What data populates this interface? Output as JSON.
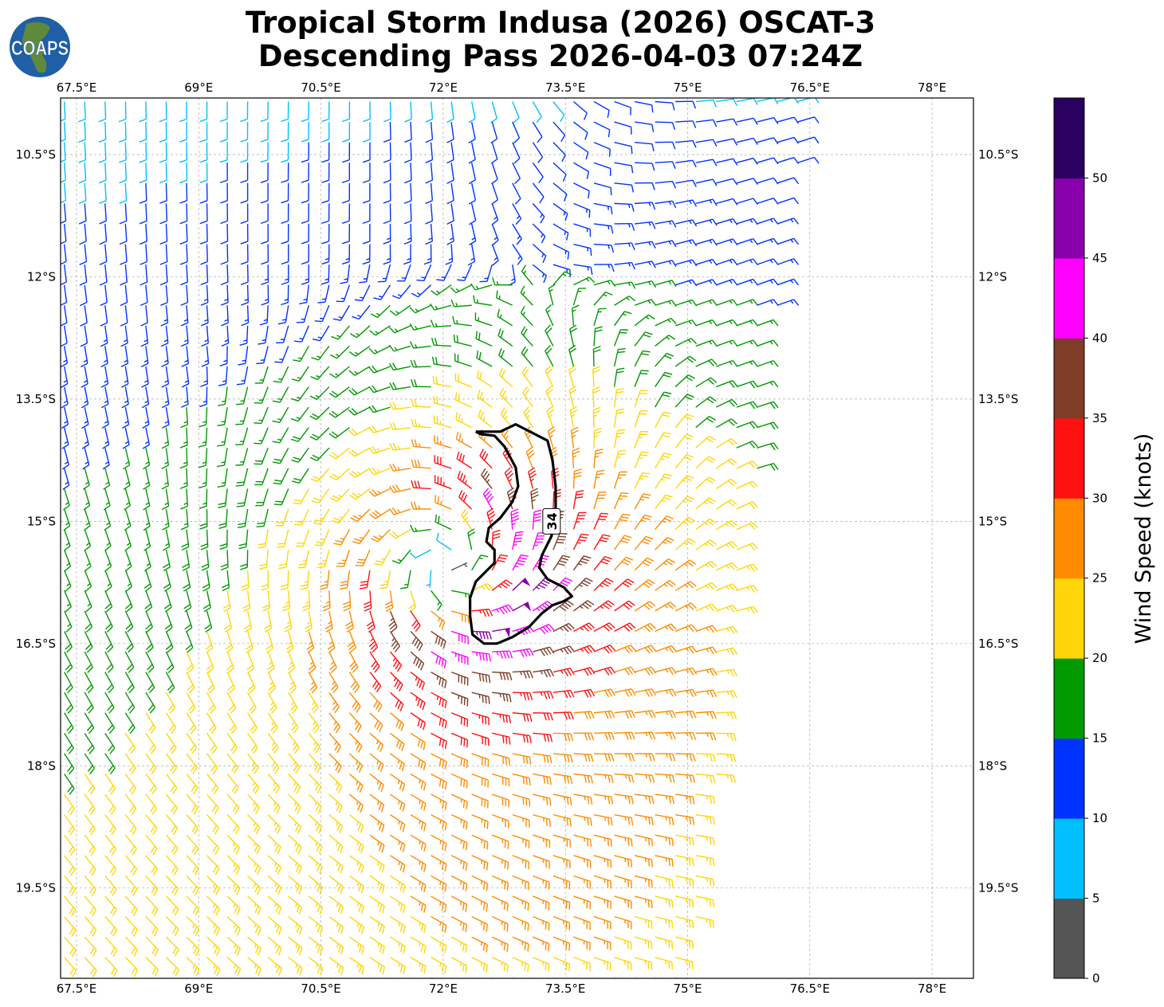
{
  "title_line1": "Tropical Storm Indusa (2026) OSCAT-3",
  "title_line2": "Descending Pass 2026-04-03 07:24Z",
  "logo_text": "COAPS",
  "chart_data": {
    "type": "wind-barb map",
    "title": "Tropical Storm Indusa (2026) OSCAT-3 Descending Pass 2026-04-03 07:24Z",
    "lon_range": [
      67.3,
      78.5
    ],
    "lat_range": [
      -20.6,
      -9.8
    ],
    "lon_ticks": [
      67.5,
      69,
      70.5,
      72,
      73.5,
      75,
      76.5,
      78
    ],
    "lon_tick_labels": [
      "67.5°E",
      "69°E",
      "70.5°E",
      "72°E",
      "73.5°E",
      "75°E",
      "76.5°E",
      "78°E"
    ],
    "lat_ticks": [
      -10.5,
      -12,
      -13.5,
      -15,
      -16.5,
      -18,
      -19.5
    ],
    "lat_tick_labels": [
      "10.5°S",
      "12°S",
      "13.5°S",
      "15°S",
      "16.5°S",
      "18°S",
      "19.5°S"
    ],
    "grid": true,
    "storm_center": {
      "lon": 72.05,
      "lat": -15.55
    },
    "barb_grid_spacing_deg": 0.25,
    "swath_east_edge": [
      {
        "lat": -9.83,
        "lon": 76.47
      },
      {
        "lat": -20.55,
        "lon": 75.02
      }
    ],
    "wind_model": {
      "max_wind_kt": 30,
      "rmw_deg": 0.9,
      "asymmetry": 0.35,
      "bg_north_kt": 6,
      "bg_rate_kt_per_deg": 1.2
    },
    "contour": {
      "level": 34,
      "label": "34",
      "label_position": {
        "lon": 73.33,
        "lat": -15.0
      },
      "points": [
        [
          72.4,
          -13.9
        ],
        [
          72.7,
          -13.9
        ],
        [
          72.89,
          -13.81
        ],
        [
          73.28,
          -14.01
        ],
        [
          73.34,
          -14.24
        ],
        [
          73.38,
          -14.57
        ],
        [
          73.38,
          -14.83
        ],
        [
          73.33,
          -15.18
        ],
        [
          73.21,
          -15.42
        ],
        [
          73.18,
          -15.57
        ],
        [
          73.28,
          -15.71
        ],
        [
          73.48,
          -15.81
        ],
        [
          73.58,
          -15.92
        ],
        [
          73.48,
          -15.98
        ],
        [
          73.34,
          -16.03
        ],
        [
          73.21,
          -16.13
        ],
        [
          73.05,
          -16.3
        ],
        [
          72.85,
          -16.42
        ],
        [
          72.66,
          -16.5
        ],
        [
          72.5,
          -16.5
        ],
        [
          72.36,
          -16.39
        ],
        [
          72.33,
          -16.16
        ],
        [
          72.33,
          -15.94
        ],
        [
          72.4,
          -15.74
        ],
        [
          72.53,
          -15.61
        ],
        [
          72.63,
          -15.51
        ],
        [
          72.63,
          -15.35
        ],
        [
          72.53,
          -15.25
        ],
        [
          72.56,
          -15.08
        ],
        [
          72.7,
          -14.96
        ],
        [
          72.85,
          -14.76
        ],
        [
          72.92,
          -14.57
        ],
        [
          72.89,
          -14.34
        ],
        [
          72.75,
          -14.08
        ],
        [
          72.63,
          -13.95
        ],
        [
          72.46,
          -13.93
        ],
        [
          72.4,
          -13.9
        ]
      ]
    },
    "colorbar": {
      "label": "Wind Speed (knots)",
      "bounds": [
        0,
        5,
        10,
        15,
        20,
        25,
        30,
        35,
        40,
        45,
        50,
        55
      ],
      "tick_labels": [
        "0",
        "5",
        "10",
        "15",
        "20",
        "25",
        "30",
        "35",
        "40",
        "45",
        "50"
      ],
      "colors": [
        "#555555",
        "#00bfff",
        "#0033ff",
        "#009900",
        "#ffd60a",
        "#ff8c00",
        "#ff1111",
        "#7f3c28",
        "#ff00ff",
        "#8800aa",
        "#2a0060"
      ]
    }
  }
}
